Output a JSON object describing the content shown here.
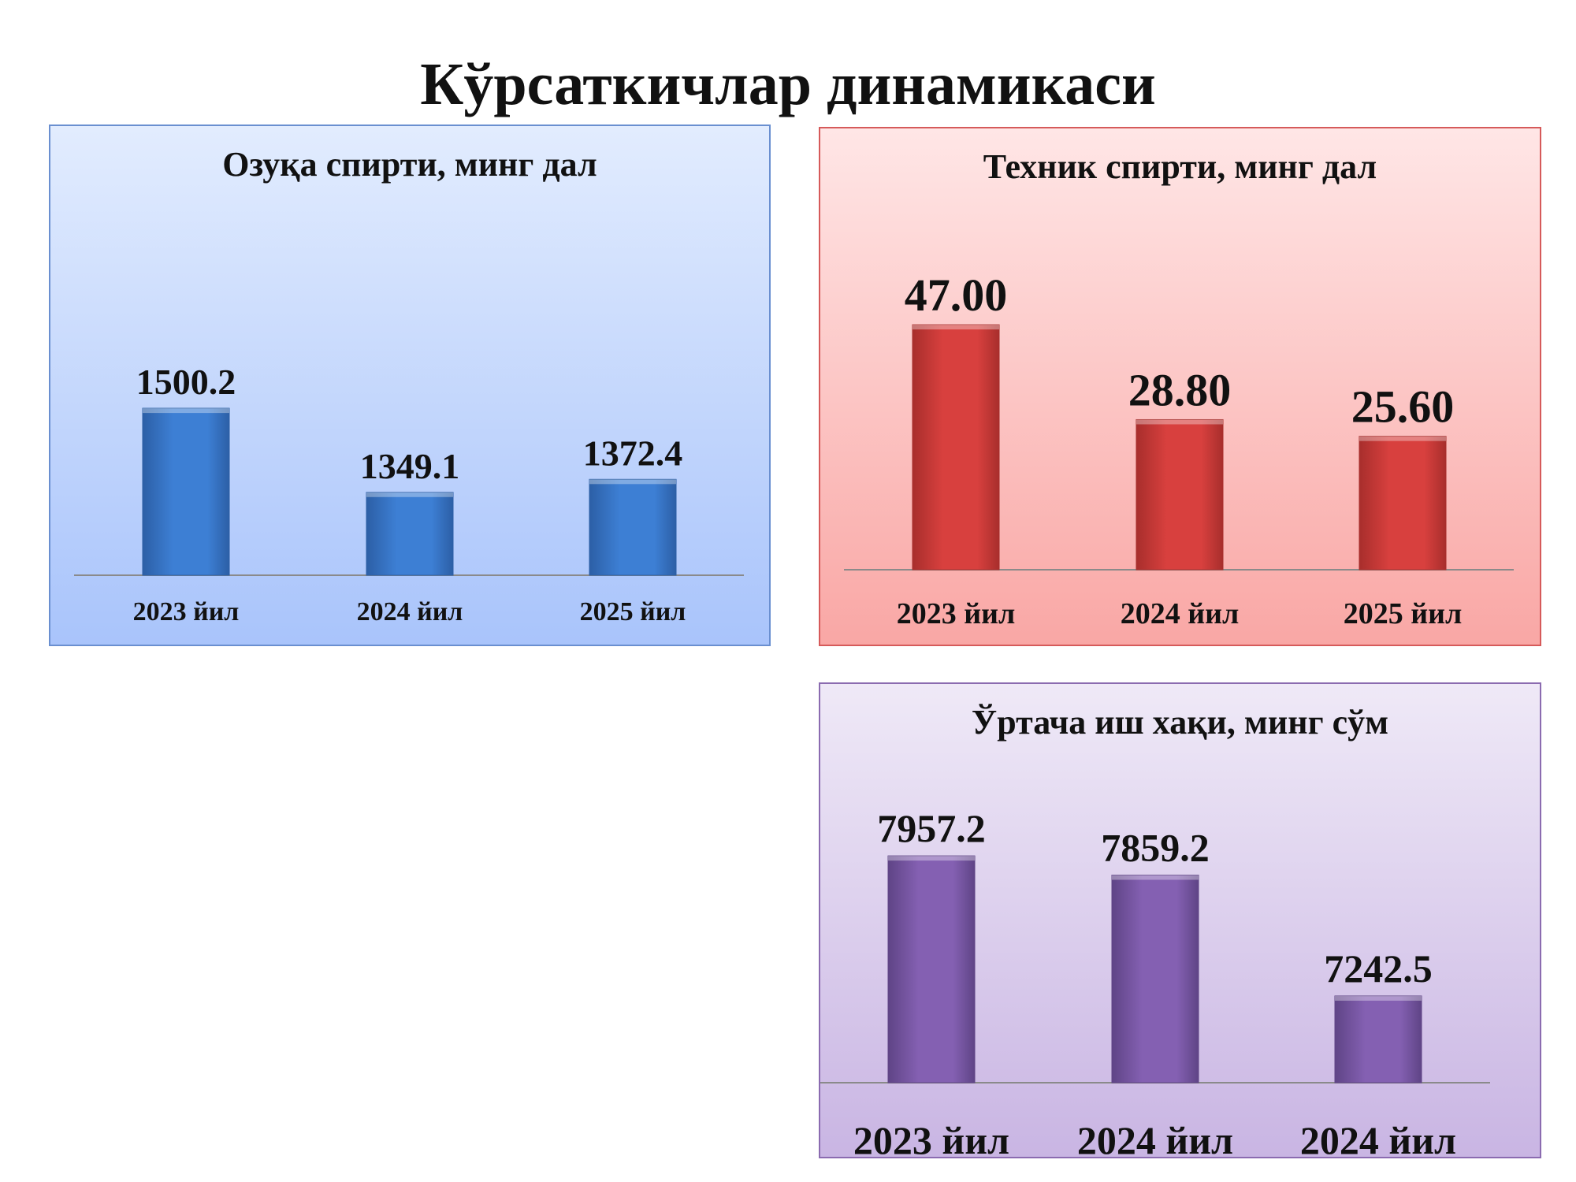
{
  "title": "Кўрсаткичлар динамикаси",
  "chart_data": [
    {
      "type": "bar",
      "title": "Озуқа спирти, минг дал",
      "categories": [
        "2023 йил",
        "2024 йил",
        "2025 йил"
      ],
      "values": [
        1500.2,
        1349.1,
        1372.4
      ],
      "value_labels": [
        "1500.2",
        "1349.1",
        "1372.4"
      ],
      "xlabel": "",
      "ylabel": "",
      "ylim": [
        1200,
        1540
      ],
      "grid": false,
      "colors": {
        "bar": "#3d7fd4",
        "bar_dark": "#2c5fa6"
      }
    },
    {
      "type": "bar",
      "title": "Техник спирти, минг дал",
      "categories": [
        "2023 йил",
        "2024 йил",
        "2025 йил"
      ],
      "values": [
        47.0,
        28.8,
        25.6
      ],
      "value_labels": [
        "47.00",
        "28.80",
        "25.60"
      ],
      "xlabel": "",
      "ylabel": "",
      "ylim": [
        0,
        52
      ],
      "grid": false,
      "colors": {
        "bar": "#d8403e",
        "bar_dark": "#a82e2c"
      }
    },
    {
      "type": "bar",
      "title": "Ўртача иш хақи, минг сўм",
      "categories": [
        "2023 йил",
        "2024 йил",
        "2024 йил"
      ],
      "values": [
        7957.2,
        7859.2,
        7242.5
      ],
      "value_labels": [
        "7957.2",
        "7859.2",
        "7242.5"
      ],
      "xlabel": "",
      "ylabel": "",
      "ylim": [
        6800,
        8030
      ],
      "grid": false,
      "colors": {
        "bar": "#8460b2",
        "bar_dark": "#5f4486"
      }
    }
  ]
}
